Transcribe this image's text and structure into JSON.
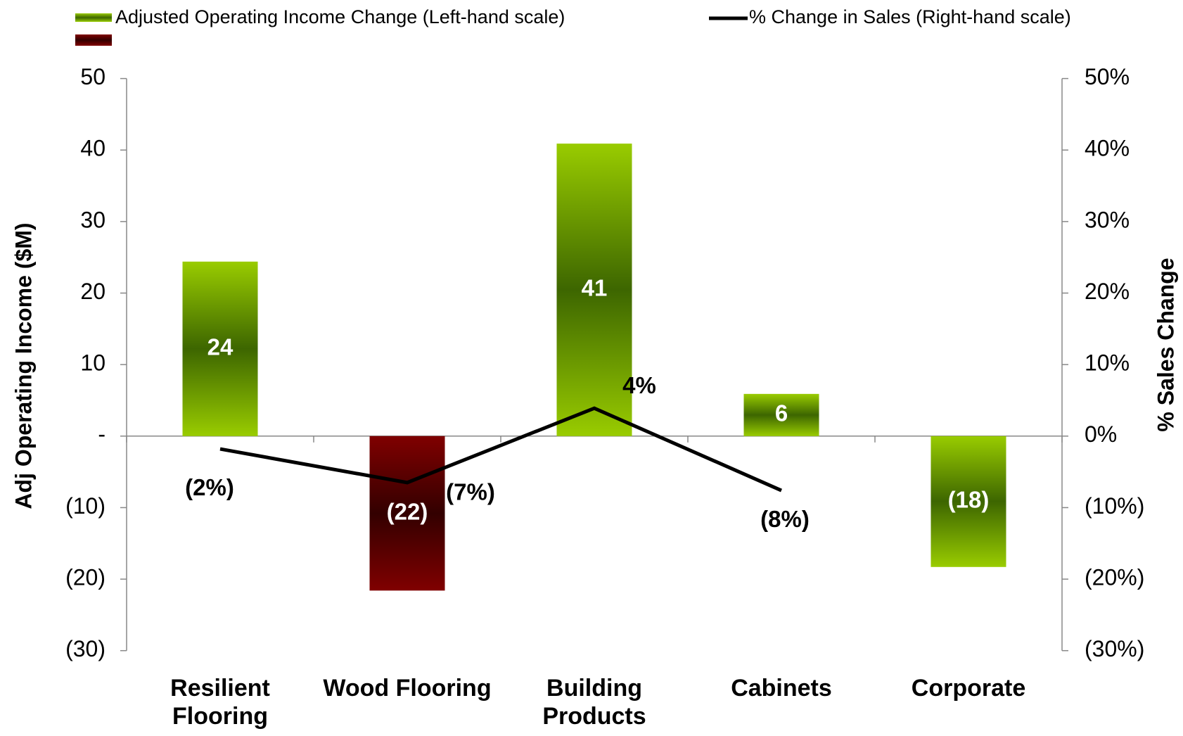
{
  "chart_data": {
    "type": "bar-line",
    "categories": [
      "Resilient\nFlooring",
      "Wood Flooring",
      "Building\nProducts",
      "Cabinets",
      "Corporate"
    ],
    "y_label": "Adj Operating Income ($M)",
    "y2_label": "% Sales Change",
    "series": [
      {
        "name": "Adjusted Operating Income Change (Left-hand scale)",
        "type": "bar",
        "color": "#99cc00",
        "colors": [
          "#99cc00",
          "#800000",
          "#99cc00",
          "#99cc00",
          "#99cc00"
        ],
        "values": [
          24.4,
          -21.6,
          40.9,
          5.9,
          -18.3
        ],
        "value_labels": [
          "24",
          "(22)",
          "41",
          "6",
          "(18)"
        ]
      },
      {
        "name": "% Change in Sales (Right-hand scale)",
        "type": "line",
        "axis": "y2",
        "color": "#000000",
        "values": [
          -1.8,
          -6.5,
          3.9,
          -7.6,
          null
        ],
        "value_labels": [
          "(2%)",
          "(7%)",
          "4%",
          "(8%)",
          null
        ]
      }
    ],
    "ylim": [
      -30,
      50
    ],
    "yticks": [
      {
        "value": -30,
        "label": "(30)"
      },
      {
        "value": -20,
        "label": "(20)"
      },
      {
        "value": -10,
        "label": "(10)"
      },
      {
        "value": 0,
        "label": "-"
      },
      10,
      20,
      30,
      40,
      50
    ],
    "y2lim": [
      -30,
      50
    ],
    "y2ticks": [
      {
        "value": -30,
        "label": "(30%)"
      },
      {
        "value": -20,
        "label": "(20%)"
      },
      {
        "value": -10,
        "label": "(10%)"
      },
      {
        "value": 0,
        "label": "0%"
      },
      {
        "value": 10,
        "label": "10%"
      },
      {
        "value": 20,
        "label": "20%"
      },
      {
        "value": 30,
        "label": "30%"
      },
      {
        "value": 40,
        "label": "40%"
      },
      {
        "value": 50,
        "label": "50%"
      }
    ]
  }
}
